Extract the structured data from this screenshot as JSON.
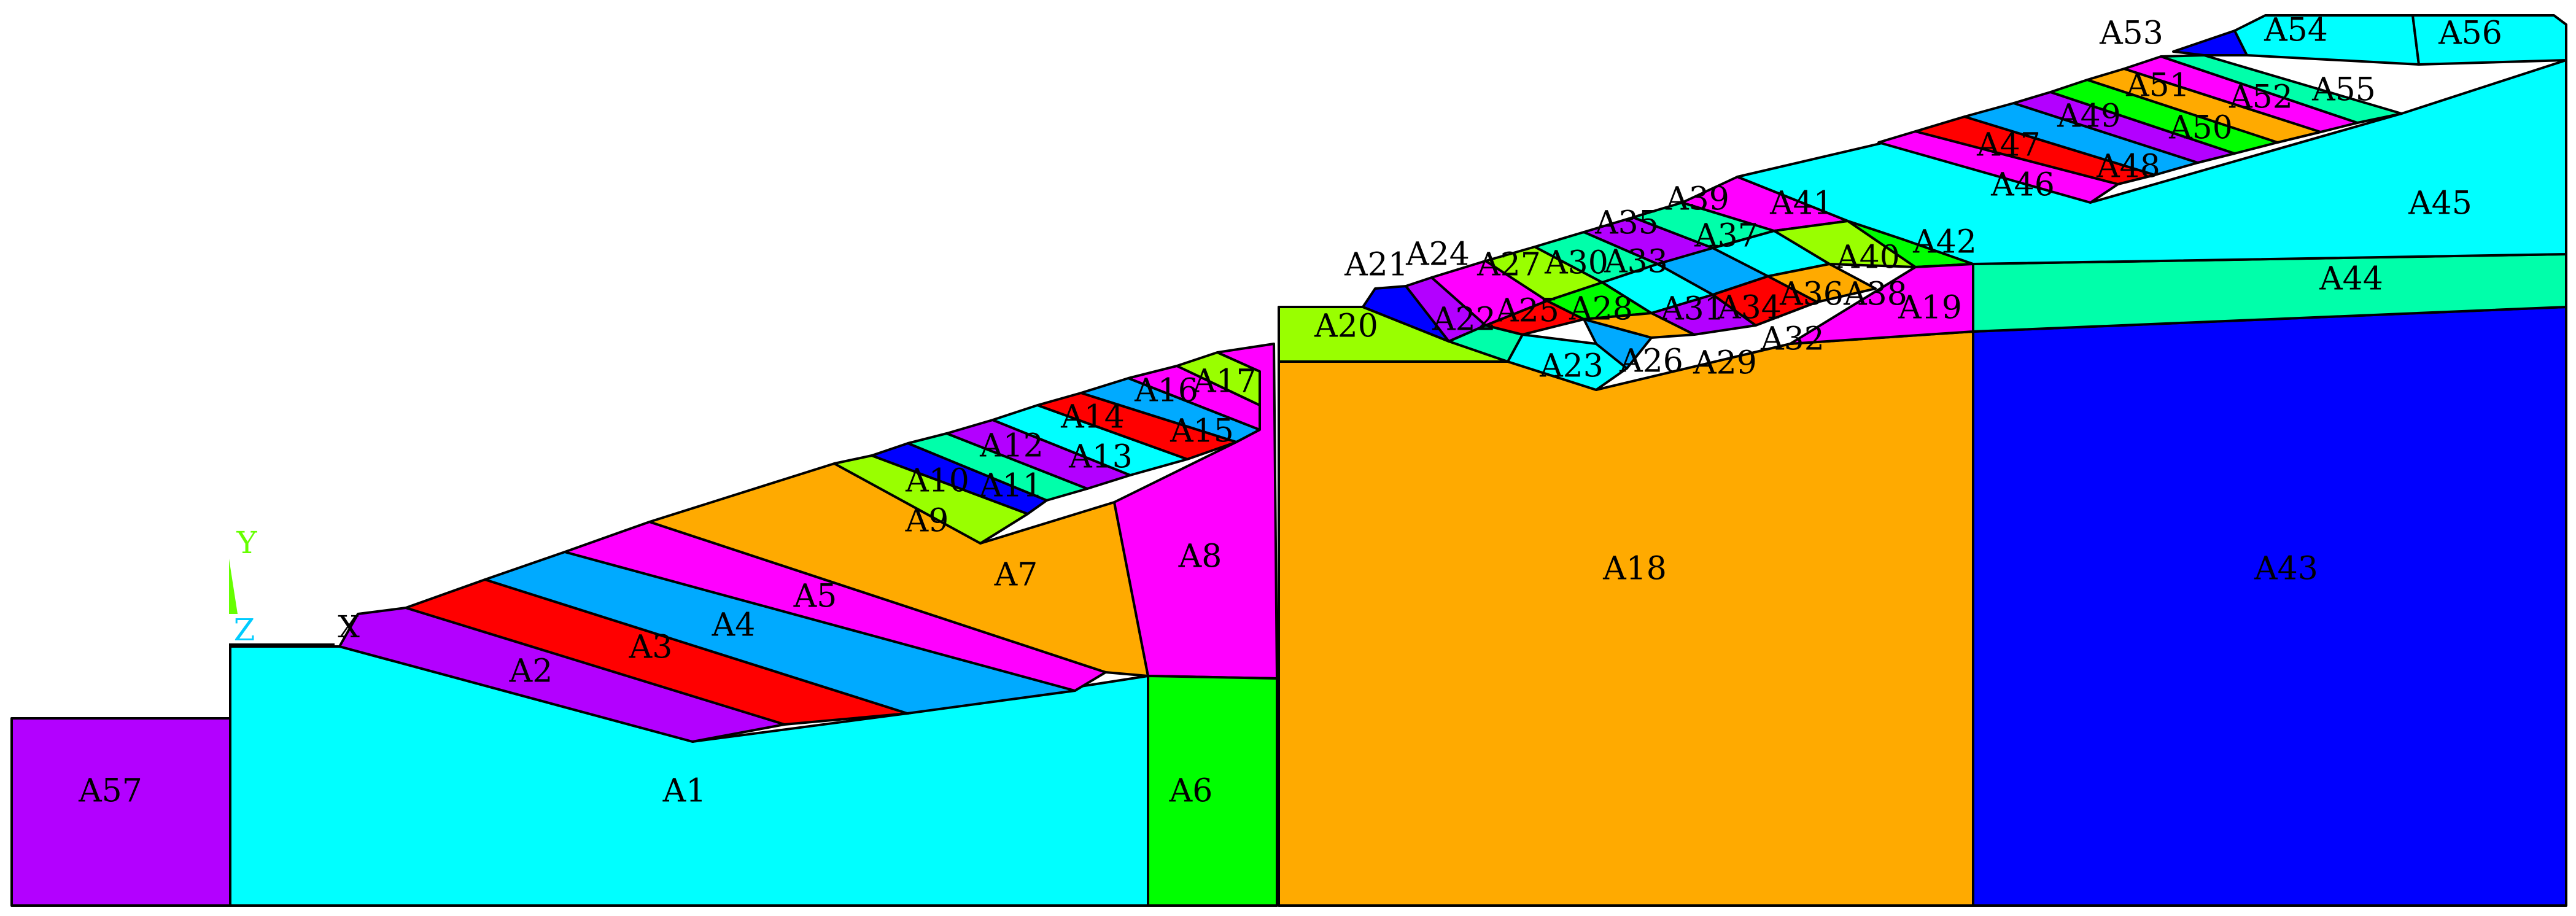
{
  "colors": {
    "cyan": "#00ffff",
    "magenta": "#ff00ff",
    "purple": "#b300ff",
    "red": "#ff0000",
    "blue": "#00aaff",
    "orange": "#ffaa00",
    "green": "#00ff00",
    "limegreen": "#99ff00",
    "navy": "#0000ff",
    "aquagreen": "#00ffaa",
    "outline": "#000000"
  },
  "axis": {
    "y_label": "Y",
    "z_label": "Z",
    "x_label": "X"
  },
  "areas": [
    {
      "id": "A1",
      "label": "A1",
      "color": "cyan"
    },
    {
      "id": "A2",
      "label": "A2",
      "color": "purple"
    },
    {
      "id": "A3",
      "label": "A3",
      "color": "red"
    },
    {
      "id": "A4",
      "label": "A4",
      "color": "blue"
    },
    {
      "id": "A5",
      "label": "A5",
      "color": "magenta"
    },
    {
      "id": "A6",
      "label": "A6",
      "color": "green"
    },
    {
      "id": "A7",
      "label": "A7",
      "color": "orange"
    },
    {
      "id": "A8",
      "label": "A8",
      "color": "magenta"
    },
    {
      "id": "A9",
      "label": "A9",
      "color": "limegreen"
    },
    {
      "id": "A10",
      "label": "A10",
      "color": "navy"
    },
    {
      "id": "A11",
      "label": "A11",
      "color": "aquagreen"
    },
    {
      "id": "A12",
      "label": "A12",
      "color": "purple"
    },
    {
      "id": "A13",
      "label": "A13",
      "color": "cyan"
    },
    {
      "id": "A14",
      "label": "A14",
      "color": "red"
    },
    {
      "id": "A15",
      "label": "A15",
      "color": "blue"
    },
    {
      "id": "A16",
      "label": "A16",
      "color": "magenta"
    },
    {
      "id": "A17",
      "label": "A17",
      "color": "limegreen"
    },
    {
      "id": "A18",
      "label": "A18",
      "color": "orange"
    },
    {
      "id": "A19",
      "label": "A19",
      "color": "magenta"
    },
    {
      "id": "A20",
      "label": "A20",
      "color": "limegreen"
    },
    {
      "id": "A21",
      "label": "A21",
      "color": "navy"
    },
    {
      "id": "A22",
      "label": "A22",
      "color": "aquagreen"
    },
    {
      "id": "A23",
      "label": "A23",
      "color": "cyan"
    },
    {
      "id": "A24",
      "label": "A24",
      "color": "purple"
    },
    {
      "id": "A25",
      "label": "A25",
      "color": "red"
    },
    {
      "id": "A26",
      "label": "A26",
      "color": "blue"
    },
    {
      "id": "A27",
      "label": "A27",
      "color": "magenta"
    },
    {
      "id": "A28",
      "label": "A28",
      "color": "green"
    },
    {
      "id": "A29",
      "label": "A29",
      "color": "orange"
    },
    {
      "id": "A30",
      "label": "A30",
      "color": "limegreen"
    },
    {
      "id": "A31",
      "label": "A31",
      "color": "cyan"
    },
    {
      "id": "A32",
      "label": "A32",
      "color": "purple"
    },
    {
      "id": "A33",
      "label": "A33",
      "color": "aquagreen"
    },
    {
      "id": "A34",
      "label": "A34",
      "color": "blue"
    },
    {
      "id": "A35",
      "label": "A35",
      "color": "purple"
    },
    {
      "id": "A36",
      "label": "A36",
      "color": "red"
    },
    {
      "id": "A37",
      "label": "A37",
      "color": "cyan"
    },
    {
      "id": "A38",
      "label": "A38",
      "color": "orange"
    },
    {
      "id": "A39",
      "label": "A39",
      "color": "aquagreen"
    },
    {
      "id": "A40",
      "label": "A40",
      "color": "limegreen"
    },
    {
      "id": "A41",
      "label": "A41",
      "color": "magenta"
    },
    {
      "id": "A42",
      "label": "A42",
      "color": "green"
    },
    {
      "id": "A43",
      "label": "A43",
      "color": "navy"
    },
    {
      "id": "A44",
      "label": "A44",
      "color": "aquagreen"
    },
    {
      "id": "A45",
      "label": "A45",
      "color": "cyan"
    },
    {
      "id": "A46",
      "label": "A46",
      "color": "magenta"
    },
    {
      "id": "A47",
      "label": "A47",
      "color": "red"
    },
    {
      "id": "A48",
      "label": "A48",
      "color": "blue"
    },
    {
      "id": "A49",
      "label": "A49",
      "color": "purple"
    },
    {
      "id": "A50",
      "label": "A50",
      "color": "green"
    },
    {
      "id": "A51",
      "label": "A51",
      "color": "orange"
    },
    {
      "id": "A52",
      "label": "A52",
      "color": "magenta"
    },
    {
      "id": "A53",
      "label": "A53",
      "color": "navy"
    },
    {
      "id": "A54",
      "label": "A54",
      "color": "cyan"
    },
    {
      "id": "A55",
      "label": "A55",
      "color": "aquagreen"
    },
    {
      "id": "A56",
      "label": "A56",
      "color": "cyan"
    },
    {
      "id": "A57",
      "label": "A57",
      "color": "purple"
    }
  ]
}
